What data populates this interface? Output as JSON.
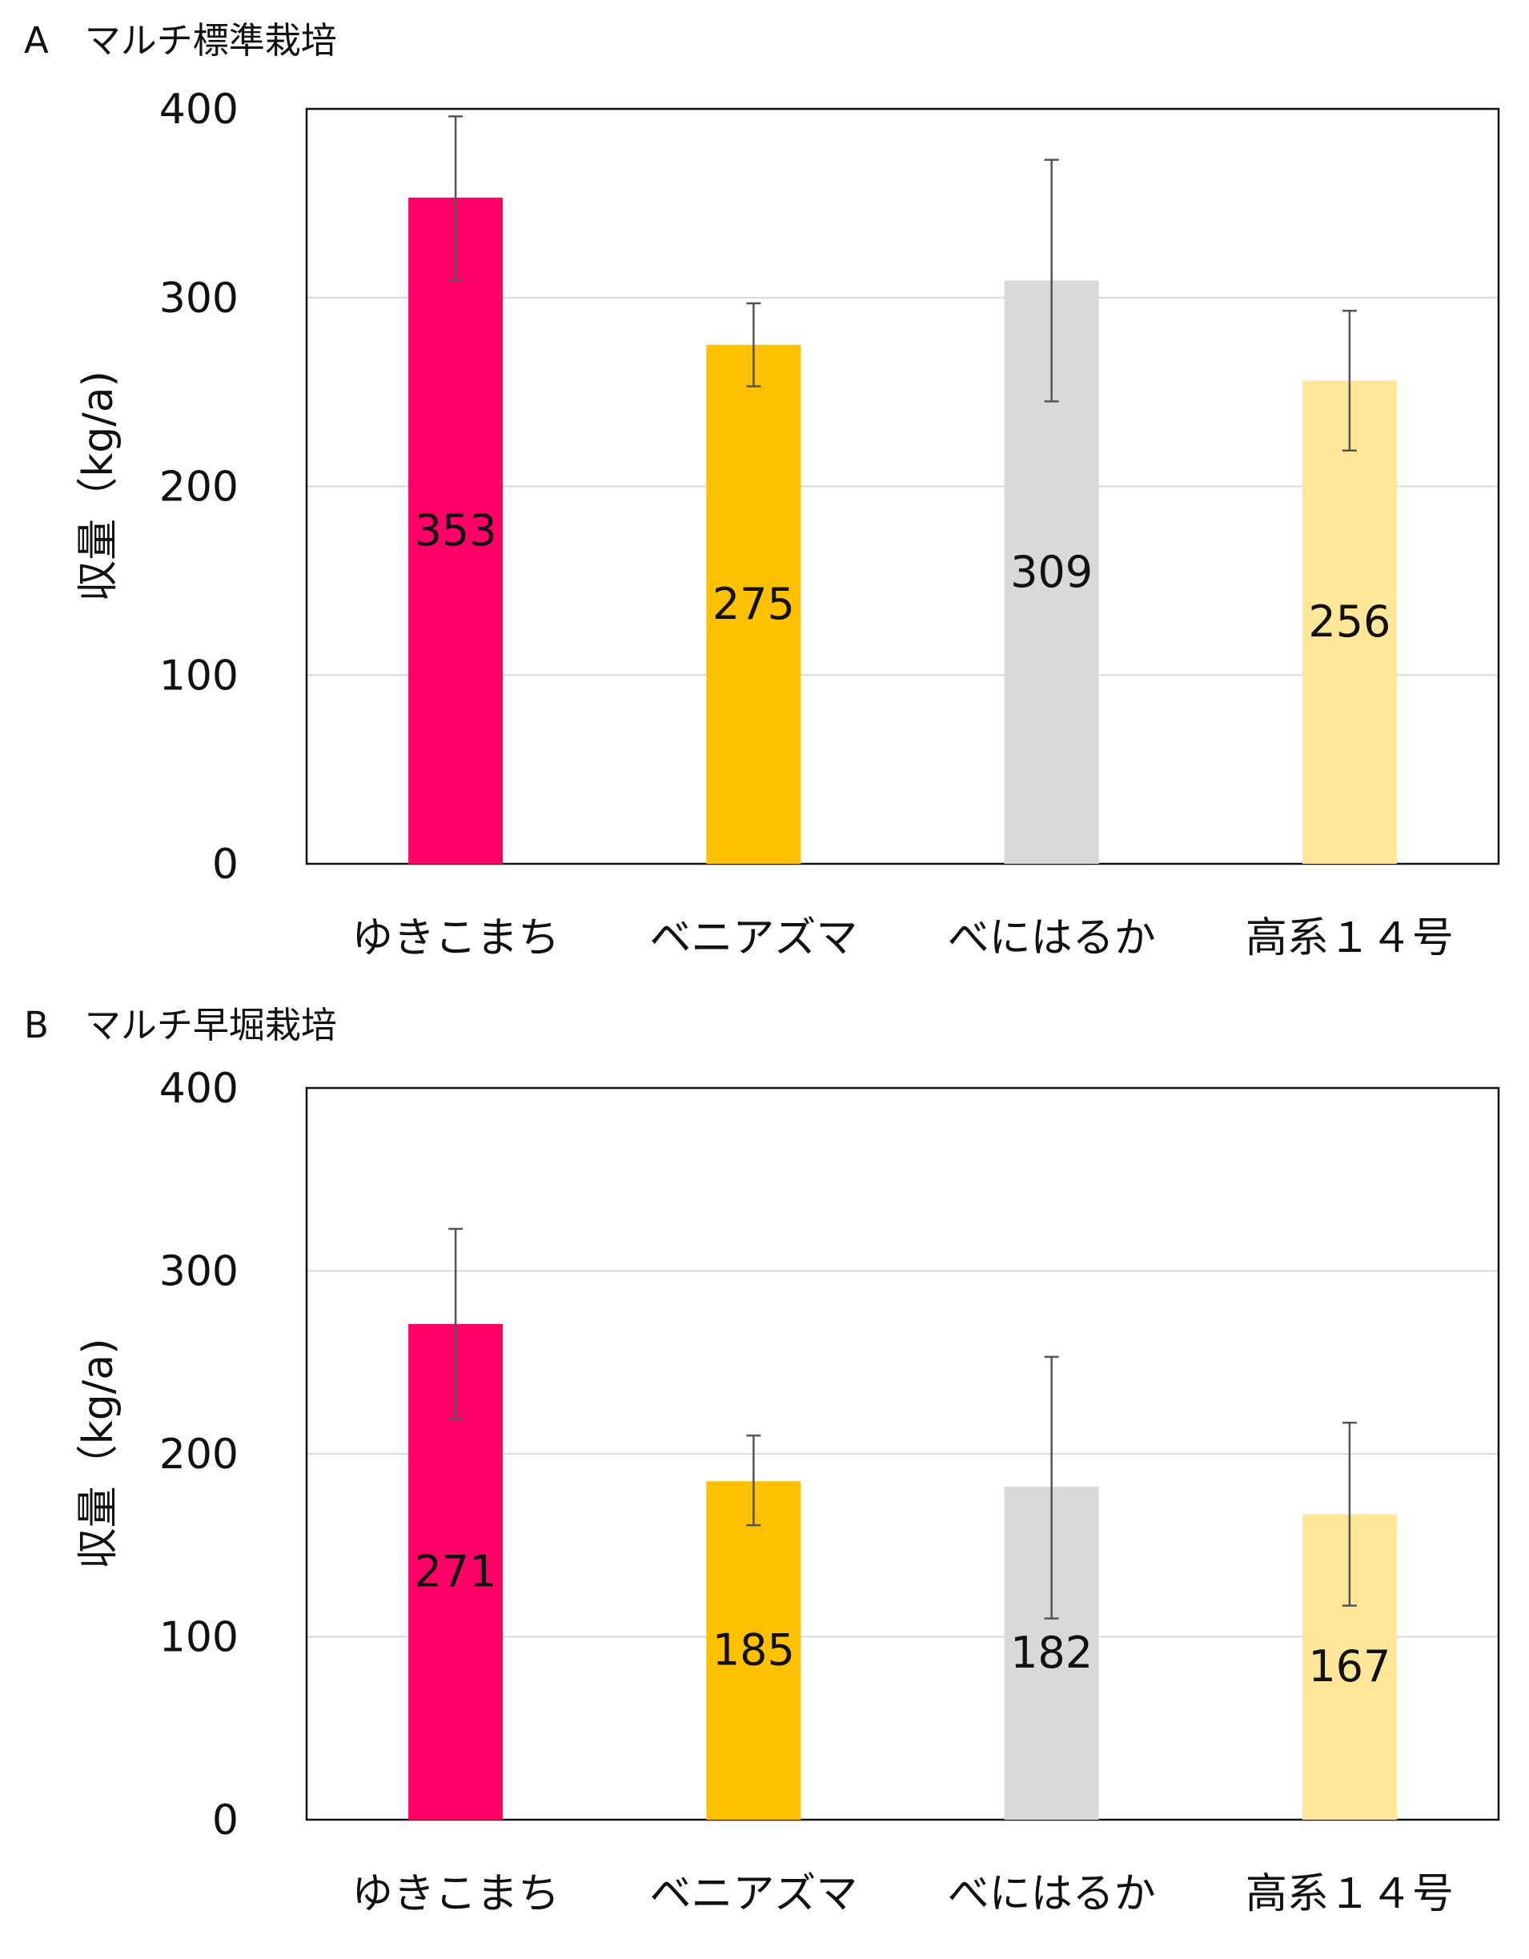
{
  "chart_data": [
    {
      "type": "bar",
      "title": "A　マルチ標準栽培",
      "xlabel": "",
      "ylabel": "収量（kg/a)",
      "categories": [
        "ゆきこまち",
        "ベニアズマ",
        "べにはるか",
        "高系１４号"
      ],
      "values": [
        353,
        275,
        309,
        256
      ],
      "error_low": [
        309,
        253,
        245,
        219
      ],
      "error_high": [
        396,
        297,
        373,
        293
      ],
      "colors": [
        "#ff0066",
        "#ffc000",
        "#d9d9d9",
        "#ffe699"
      ],
      "ylim": [
        0,
        400
      ],
      "yticks": [
        "0",
        "100",
        "200",
        "300",
        "400"
      ],
      "grid": true,
      "legend": "none"
    },
    {
      "type": "bar",
      "title": "B　マルチ早堀栽培",
      "xlabel": "",
      "ylabel": "収量（kg/a)",
      "categories": [
        "ゆきこまち",
        "ベニアズマ",
        "べにはるか",
        "高系１４号"
      ],
      "values": [
        271,
        185,
        182,
        167
      ],
      "error_low": [
        219,
        161,
        110,
        117
      ],
      "error_high": [
        323,
        210,
        253,
        217
      ],
      "colors": [
        "#ff0066",
        "#ffc000",
        "#d9d9d9",
        "#ffe699"
      ],
      "ylim": [
        0,
        400
      ],
      "yticks": [
        "0",
        "100",
        "200",
        "300",
        "400"
      ],
      "grid": true,
      "legend": "none"
    }
  ]
}
